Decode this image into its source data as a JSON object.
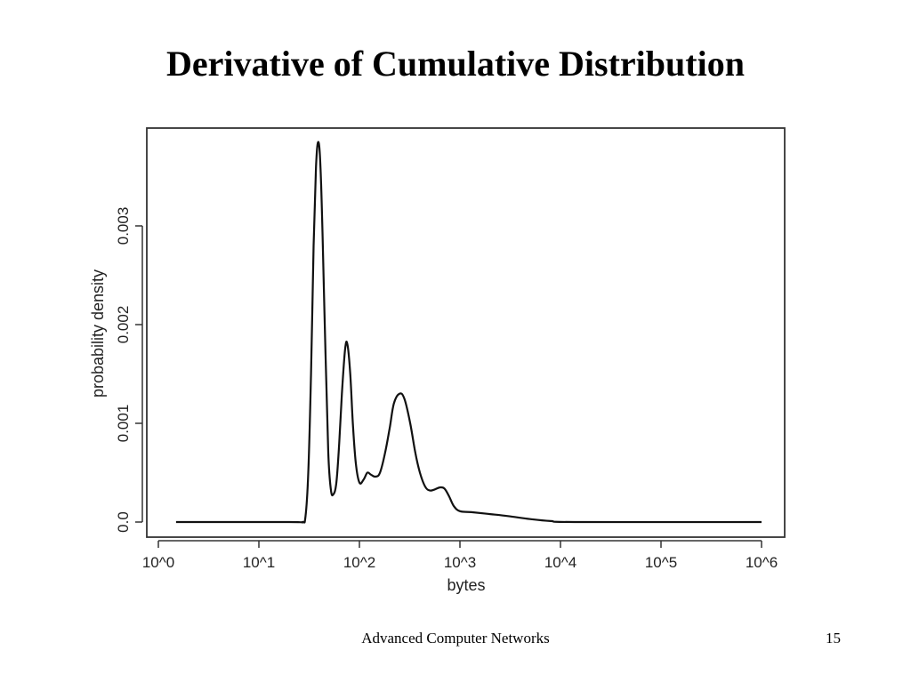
{
  "slide": {
    "title": "Derivative of Cumulative Distribution",
    "footer": "Advanced Computer Networks",
    "page_number": "15"
  },
  "chart_data": {
    "type": "line",
    "xlabel": "bytes",
    "ylabel": "probability density",
    "x_scale": "log10",
    "xlim": [
      1,
      1000000
    ],
    "ylim": [
      -2e-05,
      0.0039
    ],
    "x_ticks": [
      1,
      10,
      100,
      1000,
      10000,
      100000,
      1000000
    ],
    "x_tick_labels": [
      "10^0",
      "10^1",
      "10^2",
      "10^3",
      "10^4",
      "10^5",
      "10^6"
    ],
    "y_ticks": [
      0.0,
      0.001,
      0.002,
      0.003
    ],
    "y_tick_labels": [
      "0.0",
      "0.001",
      "0.002",
      "0.003"
    ],
    "grid": false,
    "series": [
      {
        "values": [
          [
            1.5,
            0.0
          ],
          [
            20,
            0.0
          ],
          [
            27,
            0.0
          ],
          [
            29,
            5e-05
          ],
          [
            31,
            0.0005
          ],
          [
            33,
            0.0015
          ],
          [
            35,
            0.0028
          ],
          [
            37,
            0.0036
          ],
          [
            39,
            0.00385
          ],
          [
            41,
            0.0036
          ],
          [
            43,
            0.0029
          ],
          [
            46,
            0.0017
          ],
          [
            49,
            0.0007
          ],
          [
            52,
            0.00033
          ],
          [
            55,
            0.00028
          ],
          [
            59,
            0.0004
          ],
          [
            63,
            0.0008
          ],
          [
            67,
            0.0013
          ],
          [
            72,
            0.00175
          ],
          [
            76,
            0.0018
          ],
          [
            81,
            0.0015
          ],
          [
            86,
            0.001
          ],
          [
            92,
            0.0006
          ],
          [
            100,
            0.0004
          ],
          [
            110,
            0.00043
          ],
          [
            120,
            0.0005
          ],
          [
            130,
            0.00048
          ],
          [
            145,
            0.00046
          ],
          [
            160,
            0.0005
          ],
          [
            180,
            0.0007
          ],
          [
            200,
            0.00095
          ],
          [
            220,
            0.0012
          ],
          [
            250,
            0.0013
          ],
          [
            280,
            0.00125
          ],
          [
            320,
            0.001
          ],
          [
            360,
            0.0007
          ],
          [
            400,
            0.0005
          ],
          [
            450,
            0.00036
          ],
          [
            500,
            0.00032
          ],
          [
            560,
            0.00033
          ],
          [
            630,
            0.00035
          ],
          [
            700,
            0.00034
          ],
          [
            780,
            0.00026
          ],
          [
            870,
            0.00016
          ],
          [
            1000,
            0.00011
          ],
          [
            1300,
            0.0001
          ],
          [
            2000,
            8e-05
          ],
          [
            3000,
            6e-05
          ],
          [
            5000,
            3e-05
          ],
          [
            8000,
            1e-05
          ],
          [
            15000,
            0.0
          ],
          [
            1000000,
            0.0
          ]
        ]
      }
    ]
  }
}
